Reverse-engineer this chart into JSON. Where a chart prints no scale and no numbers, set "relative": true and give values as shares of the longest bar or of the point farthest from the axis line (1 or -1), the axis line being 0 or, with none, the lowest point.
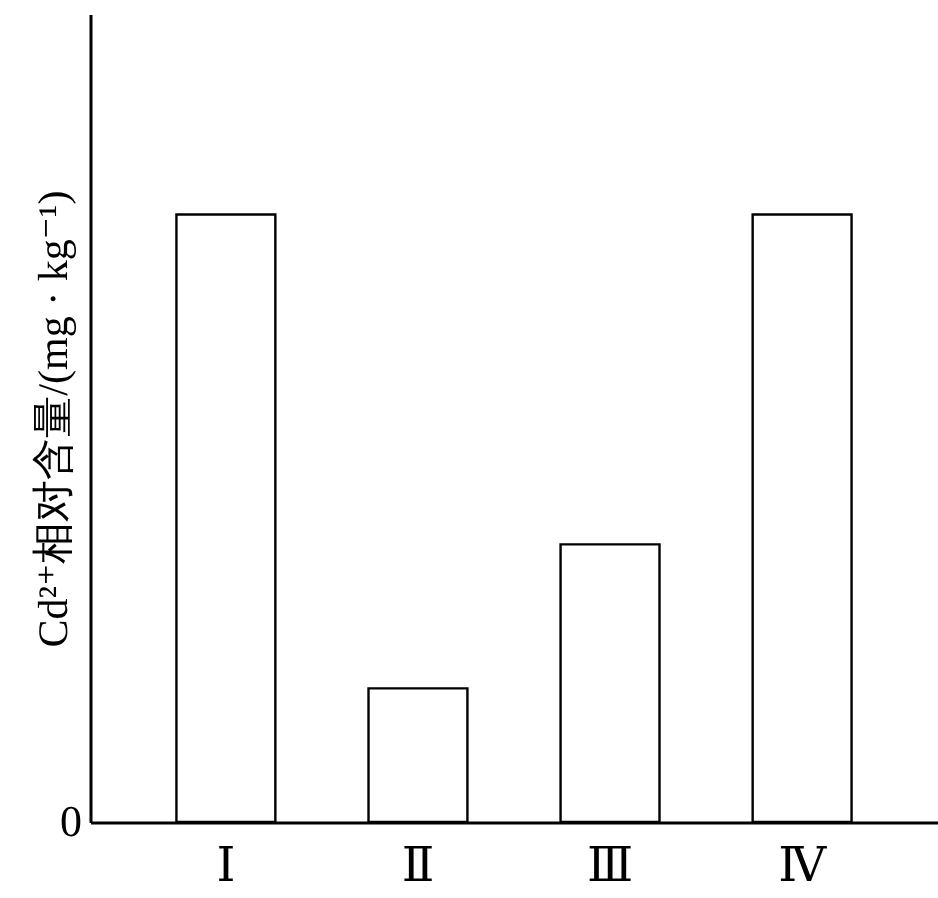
{
  "chart_data": {
    "type": "bar",
    "relative": true,
    "ylabel": "Cd²⁺相对含量/(mg · kg⁻¹)",
    "categories": [
      "Ⅰ",
      "Ⅱ",
      "Ⅲ",
      "Ⅳ"
    ],
    "values": [
      1,
      0.22,
      0.457,
      1
    ],
    "color": "#ffffff",
    "annotations": [
      "0"
    ]
  }
}
